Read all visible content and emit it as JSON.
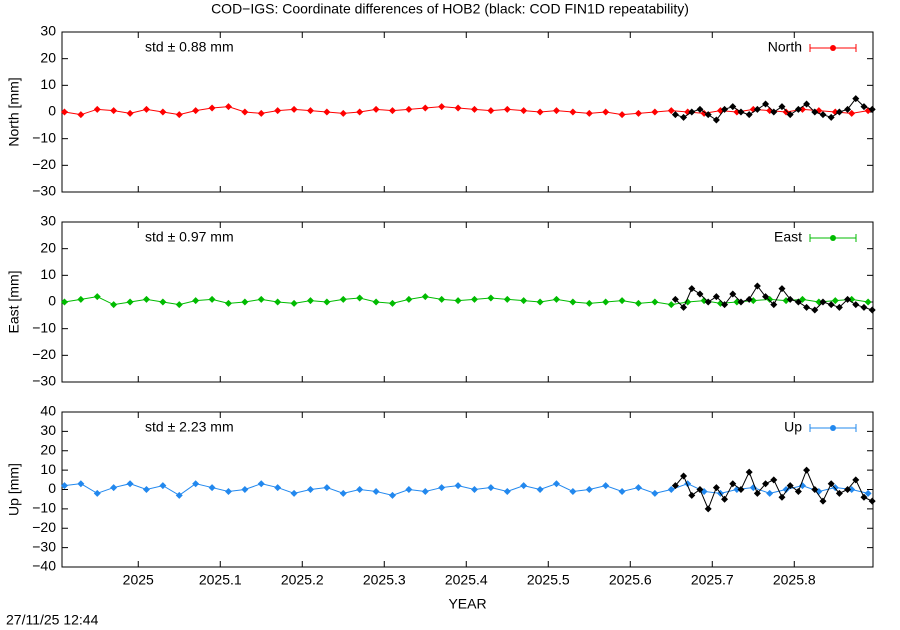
{
  "title": "COD−IGS: Coordinate differences of HOB2 (black: COD FIN1D repeatability)",
  "timestamp": "27/11/25 12:44",
  "chart_data": [
    {
      "type": "scatter",
      "ylabel": "North [mm]",
      "annotation": "std ± 0.88 mm",
      "legend": "upper right",
      "xlim": [
        2024.907,
        2025.896
      ],
      "ylim": [
        -30,
        30
      ],
      "yticks": [
        {
          "value": -30,
          "label": "−30"
        },
        {
          "value": -20,
          "label": "−20"
        },
        {
          "value": -10,
          "label": "−10"
        },
        0,
        10,
        20,
        30
      ],
      "series": [
        {
          "name": "North",
          "color": "#ff0000",
          "x": [
            2024.91,
            2024.93,
            2024.95,
            2024.97,
            2024.99,
            2025.01,
            2025.03,
            2025.05,
            2025.07,
            2025.09,
            2025.11,
            2025.13,
            2025.15,
            2025.17,
            2025.19,
            2025.21,
            2025.23,
            2025.25,
            2025.27,
            2025.29,
            2025.31,
            2025.33,
            2025.35,
            2025.37,
            2025.39,
            2025.41,
            2025.43,
            2025.45,
            2025.47,
            2025.49,
            2025.51,
            2025.53,
            2025.55,
            2025.57,
            2025.59,
            2025.61,
            2025.63,
            2025.65,
            2025.67,
            2025.69,
            2025.71,
            2025.73,
            2025.75,
            2025.77,
            2025.79,
            2025.81,
            2025.83,
            2025.85,
            2025.87,
            2025.89
          ],
          "values": [
            0,
            -1,
            1,
            0.5,
            -0.5,
            1,
            0,
            -1,
            0.5,
            1.5,
            2,
            0,
            -0.5,
            0.5,
            1,
            0.5,
            0,
            -0.5,
            0,
            1,
            0.5,
            1,
            1.5,
            2,
            1.5,
            1,
            0.5,
            1,
            0.5,
            0,
            0.5,
            0,
            -0.5,
            0,
            -1,
            -0.5,
            0,
            0.5,
            0,
            -0.5,
            0.5,
            0,
            1,
            0.5,
            0,
            1,
            0.5,
            0,
            -0.5,
            0.5
          ]
        },
        {
          "color": "#000000",
          "x": [
            2025.655,
            2025.665,
            2025.675,
            2025.685,
            2025.695,
            2025.705,
            2025.715,
            2025.725,
            2025.735,
            2025.745,
            2025.755,
            2025.765,
            2025.775,
            2025.785,
            2025.795,
            2025.805,
            2025.815,
            2025.825,
            2025.835,
            2025.845,
            2025.855,
            2025.865,
            2025.875,
            2025.885,
            2025.895
          ],
          "values": [
            -1,
            -2,
            0,
            1,
            -1,
            -3,
            1,
            2,
            0,
            -1,
            1,
            3,
            0,
            2,
            -1,
            1,
            3,
            0,
            -1,
            -2,
            0,
            1,
            5,
            2,
            1
          ]
        }
      ]
    },
    {
      "type": "scatter",
      "ylabel": "East [mm]",
      "annotation": "std ± 0.97 mm",
      "legend": "upper right",
      "xlim": [
        2024.907,
        2025.896
      ],
      "ylim": [
        -30,
        30
      ],
      "yticks": [
        {
          "value": -30,
          "label": "−30"
        },
        {
          "value": -20,
          "label": "−20"
        },
        {
          "value": -10,
          "label": "−10"
        },
        0,
        10,
        20,
        30
      ],
      "series": [
        {
          "name": "East",
          "color": "#00bb00",
          "x": [
            2024.91,
            2024.93,
            2024.95,
            2024.97,
            2024.99,
            2025.01,
            2025.03,
            2025.05,
            2025.07,
            2025.09,
            2025.11,
            2025.13,
            2025.15,
            2025.17,
            2025.19,
            2025.21,
            2025.23,
            2025.25,
            2025.27,
            2025.29,
            2025.31,
            2025.33,
            2025.35,
            2025.37,
            2025.39,
            2025.41,
            2025.43,
            2025.45,
            2025.47,
            2025.49,
            2025.51,
            2025.53,
            2025.55,
            2025.57,
            2025.59,
            2025.61,
            2025.63,
            2025.65,
            2025.67,
            2025.69,
            2025.71,
            2025.73,
            2025.75,
            2025.77,
            2025.79,
            2025.81,
            2025.83,
            2025.85,
            2025.87,
            2025.89
          ],
          "values": [
            0,
            1,
            2,
            -1,
            0,
            1,
            0,
            -1,
            0.5,
            1,
            -0.5,
            0,
            1,
            0,
            -0.5,
            0.5,
            0,
            1,
            1.5,
            0,
            -0.5,
            1,
            2,
            1,
            0.5,
            1,
            1.5,
            1,
            0.5,
            0,
            1,
            0,
            -0.5,
            0,
            0.5,
            -0.5,
            0,
            -1,
            0,
            0.5,
            -0.5,
            0,
            0.5,
            1,
            0.5,
            1,
            0,
            0.5,
            1,
            0
          ]
        },
        {
          "color": "#000000",
          "x": [
            2025.655,
            2025.665,
            2025.675,
            2025.685,
            2025.695,
            2025.705,
            2025.715,
            2025.725,
            2025.735,
            2025.745,
            2025.755,
            2025.765,
            2025.775,
            2025.785,
            2025.795,
            2025.805,
            2025.815,
            2025.825,
            2025.835,
            2025.845,
            2025.855,
            2025.865,
            2025.875,
            2025.885,
            2025.895
          ],
          "values": [
            1,
            -2,
            5,
            3,
            0,
            2,
            -1,
            3,
            0,
            1,
            6,
            2,
            -1,
            5,
            1,
            0,
            -2,
            -3,
            0,
            -1,
            -2,
            1,
            -1,
            -2,
            -3
          ]
        }
      ]
    },
    {
      "type": "scatter",
      "ylabel": "Up [mm]",
      "annotation": "std ± 2.23 mm",
      "legend": "upper right",
      "xlabel": "YEAR",
      "xlim": [
        2024.907,
        2025.896
      ],
      "ylim": [
        -40,
        40
      ],
      "xticks": [
        2025,
        2025.1,
        2025.2,
        2025.3,
        2025.4,
        2025.5,
        2025.6,
        2025.7,
        2025.8
      ],
      "yticks": [
        {
          "value": -40,
          "label": "−40"
        },
        {
          "value": -30,
          "label": "−30"
        },
        {
          "value": -20,
          "label": "−20"
        },
        {
          "value": -10,
          "label": "−10"
        },
        0,
        10,
        20,
        30,
        40
      ],
      "series": [
        {
          "name": "Up",
          "color": "#2288ee",
          "x": [
            2024.91,
            2024.93,
            2024.95,
            2024.97,
            2024.99,
            2025.01,
            2025.03,
            2025.05,
            2025.07,
            2025.09,
            2025.11,
            2025.13,
            2025.15,
            2025.17,
            2025.19,
            2025.21,
            2025.23,
            2025.25,
            2025.27,
            2025.29,
            2025.31,
            2025.33,
            2025.35,
            2025.37,
            2025.39,
            2025.41,
            2025.43,
            2025.45,
            2025.47,
            2025.49,
            2025.51,
            2025.53,
            2025.55,
            2025.57,
            2025.59,
            2025.61,
            2025.63,
            2025.65,
            2025.67,
            2025.69,
            2025.71,
            2025.73,
            2025.75,
            2025.77,
            2025.79,
            2025.81,
            2025.83,
            2025.85,
            2025.87,
            2025.89
          ],
          "values": [
            2,
            3,
            -2,
            1,
            3,
            0,
            2,
            -3,
            3,
            1,
            -1,
            0,
            3,
            1,
            -2,
            0,
            1,
            -2,
            0,
            -1,
            -3,
            0,
            -1,
            1,
            2,
            0,
            1,
            -1,
            2,
            0,
            3,
            -1,
            0,
            2,
            -1,
            1,
            -2,
            0,
            3,
            -1,
            -2,
            0,
            1,
            -2,
            0,
            2,
            -1,
            1,
            0,
            -2
          ]
        },
        {
          "color": "#000000",
          "x": [
            2025.655,
            2025.665,
            2025.675,
            2025.685,
            2025.695,
            2025.705,
            2025.715,
            2025.725,
            2025.735,
            2025.745,
            2025.755,
            2025.765,
            2025.775,
            2025.785,
            2025.795,
            2025.805,
            2025.815,
            2025.825,
            2025.835,
            2025.845,
            2025.855,
            2025.865,
            2025.875,
            2025.885,
            2025.895
          ],
          "values": [
            2,
            7,
            -3,
            0,
            -10,
            1,
            -5,
            3,
            0,
            9,
            -2,
            3,
            5,
            -4,
            2,
            -1,
            10,
            0,
            -6,
            3,
            -2,
            0,
            5,
            -4,
            -6
          ]
        }
      ]
    }
  ]
}
